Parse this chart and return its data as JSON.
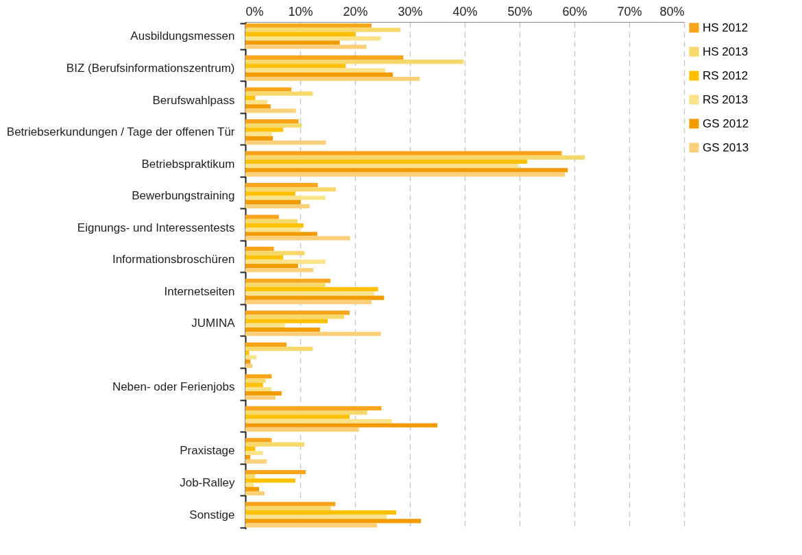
{
  "chart_data": {
    "type": "bar",
    "orientation": "horizontal",
    "categories": [
      "Ausbildungsmessen",
      "BIZ (Berufsinformationszentrum)",
      "Berufswahlpass",
      "Betriebserkundungen / Tage der offenen Tür",
      "Betriebspraktikum",
      "Bewerbungstraining",
      "Eignungs- und Interessentests",
      "Informationsbroschüren",
      "Internetseiten",
      "JUMINA",
      null,
      "Neben- oder Ferienjobs",
      null,
      "Praxistage",
      "Job-Ralley",
      "Sonstige"
    ],
    "series": [
      {
        "name": "HS 2012",
        "color": "#f9a51b",
        "values": [
          23.0,
          28.8,
          8.4,
          9.7,
          57.7,
          13.2,
          6.1,
          5.2,
          15.5,
          19.0,
          7.5,
          4.8,
          24.8,
          4.8,
          11.0,
          16.4
        ]
      },
      {
        "name": "HS 2013",
        "color": "#f7d86a",
        "values": [
          28.3,
          39.8,
          12.3,
          10.3,
          61.9,
          16.5,
          9.5,
          10.8,
          14.6,
          18.0,
          12.3,
          3.7,
          22.2,
          10.8,
          1.8,
          15.6
        ]
      },
      {
        "name": "RS 2012",
        "color": "#ffc000",
        "values": [
          20.1,
          18.3,
          1.8,
          6.9,
          51.4,
          9.1,
          10.6,
          6.9,
          24.2,
          15.0,
          0.7,
          3.2,
          19.0,
          1.8,
          9.1,
          27.5
        ]
      },
      {
        "name": "RS 2013",
        "color": "#fbe38c",
        "values": [
          24.7,
          25.5,
          4.0,
          4.8,
          49.8,
          14.6,
          10.1,
          14.6,
          23.5,
          7.2,
          2.0,
          4.8,
          26.7,
          3.2,
          1.5,
          25.8
        ]
      },
      {
        "name": "GS 2012",
        "color": "#f29b00",
        "values": [
          17.2,
          26.9,
          4.6,
          5.0,
          58.8,
          10.1,
          13.1,
          9.6,
          25.3,
          13.6,
          0.9,
          6.6,
          35.0,
          0.9,
          2.5,
          32.0
        ]
      },
      {
        "name": "GS 2013",
        "color": "#fccf7a",
        "values": [
          22.1,
          31.8,
          9.2,
          14.7,
          58.3,
          11.7,
          19.1,
          12.4,
          23.0,
          24.7,
          1.3,
          5.5,
          20.7,
          3.9,
          3.5,
          24.0
        ]
      }
    ],
    "xlim": [
      0,
      80
    ],
    "xticks": [
      {
        "value": 0,
        "label": "0%"
      },
      {
        "value": 10,
        "label": "10%"
      },
      {
        "value": 20,
        "label": "20%"
      },
      {
        "value": 30,
        "label": "30%"
      },
      {
        "value": 40,
        "label": "40%"
      },
      {
        "value": 50,
        "label": "50%"
      },
      {
        "value": 60,
        "label": "60%"
      },
      {
        "value": 70,
        "label": "70%"
      },
      {
        "value": 80,
        "label": "80%"
      }
    ],
    "grid": "x",
    "legend": "top right"
  }
}
